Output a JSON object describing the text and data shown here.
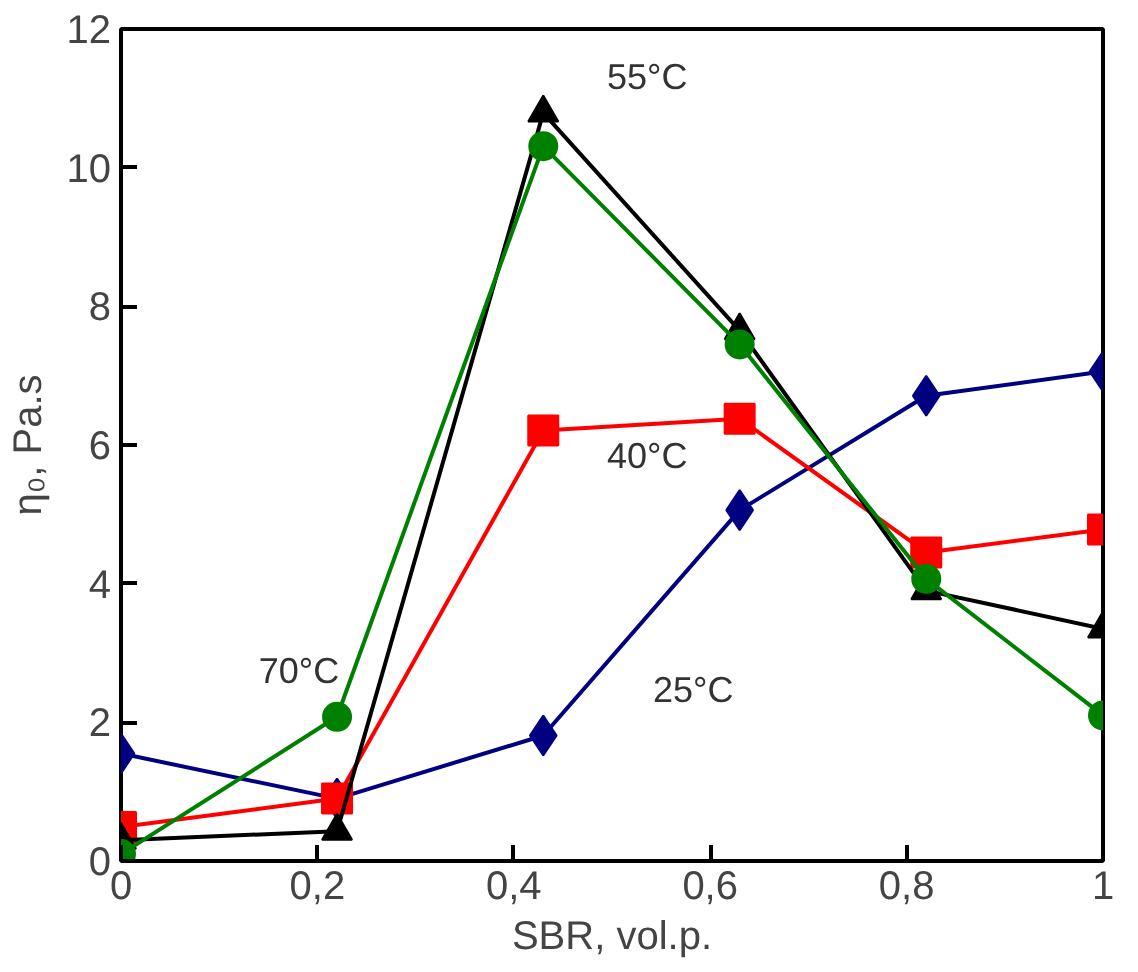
{
  "chart_data": {
    "type": "line",
    "xlabel": "SBR, vol.p.",
    "ylabel": "η₀, Pa.s",
    "x": [
      0,
      0.22,
      0.43,
      0.63,
      0.82,
      1
    ],
    "xlim": [
      0,
      1
    ],
    "ylim": [
      0,
      12
    ],
    "xticks": [
      0,
      {
        "value": 0.2,
        "label": "0,2"
      },
      {
        "value": 0.4,
        "label": "0,4"
      },
      {
        "value": 0.6,
        "label": "0,6"
      },
      {
        "value": 0.8,
        "label": "0,8"
      },
      1
    ],
    "yticks": [
      0,
      2,
      4,
      6,
      8,
      10,
      12
    ],
    "line_style": "solid",
    "series": [
      {
        "name": "25°C",
        "color": "#000080",
        "marker": "diamond",
        "values": [
          1.55,
          0.9,
          1.81,
          5.06,
          6.71,
          7.06
        ]
      },
      {
        "name": "40°C",
        "color": "#ff0000",
        "marker": "square",
        "values": [
          0.49,
          0.9,
          6.21,
          6.38,
          4.45,
          4.78
        ]
      },
      {
        "name": "55°C",
        "color": "#000000",
        "marker": "triangle",
        "values": [
          0.3,
          0.43,
          10.79,
          7.65,
          3.9,
          3.35
        ]
      },
      {
        "name": "70°C",
        "color": "#008000",
        "marker": "circle",
        "values": [
          0.1,
          2.08,
          10.31,
          7.45,
          4.07,
          2.1
        ]
      }
    ]
  }
}
